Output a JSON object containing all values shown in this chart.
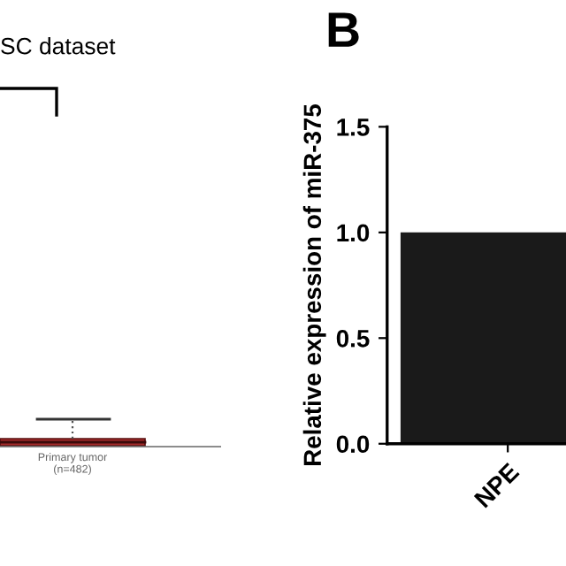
{
  "chart_data": [
    {
      "type": "other",
      "title": "SC dataset",
      "annotations": [
        "Primary tumor\n(n=482)"
      ]
    },
    {
      "type": "bar",
      "title": "B",
      "ylabel": "Relative expression of miR-375",
      "categories": [
        "NPE"
      ],
      "values": [
        1.0
      ],
      "color": "#1a1a1a",
      "ylim": [
        0,
        1.5
      ],
      "yticks": [
        {
          "value": 0,
          "label": "0.0"
        },
        {
          "value": 0.5,
          "label": "0.5"
        },
        {
          "value": 1.0,
          "label": "1.0"
        },
        {
          "value": 1.5,
          "label": "1.5"
        }
      ]
    }
  ]
}
